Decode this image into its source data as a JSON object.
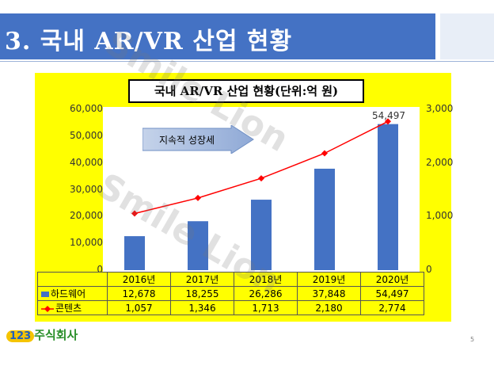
{
  "slide": {
    "title": "3. 국내 AR/VR 산업 현황",
    "page_number": "5",
    "logo_text": "주식회사",
    "logo_number": "123",
    "watermark": "Smile Lion",
    "arrow_text": "지속적 성장세"
  },
  "colors": {
    "header": "#4472c4",
    "panel": "#ffff00",
    "bar": "#4472c4",
    "line": "#ff0000"
  },
  "chart_data": {
    "type": "bar",
    "title": "국내 AR/VR 산업 현황(단위:억 원)",
    "categories": [
      "2016년",
      "2017년",
      "2018년",
      "2019년",
      "2020년"
    ],
    "series": [
      {
        "name": "하드웨어",
        "type": "bar",
        "axis": "left",
        "values": [
          12678,
          18255,
          26286,
          37848,
          54497
        ],
        "labels": [
          "12,678",
          "18,255",
          "26,286",
          "37,848",
          "54,497"
        ]
      },
      {
        "name": "콘텐츠",
        "type": "line",
        "axis": "right",
        "values": [
          1057,
          1346,
          1713,
          2180,
          2774
        ],
        "labels": [
          "1,057",
          "1,346",
          "1,713",
          "2,180",
          "2,774"
        ]
      }
    ],
    "data_label": "54,497",
    "y_left": {
      "min": 0,
      "max": 60000,
      "ticks": [
        "0",
        "10,000",
        "20,000",
        "30,000",
        "40,000",
        "50,000",
        "60,000"
      ]
    },
    "y_right": {
      "min": 0,
      "max": 3000,
      "ticks": [
        "0",
        "1,000",
        "2,000",
        "3,000"
      ]
    },
    "grid": false,
    "legend": "data-table"
  }
}
